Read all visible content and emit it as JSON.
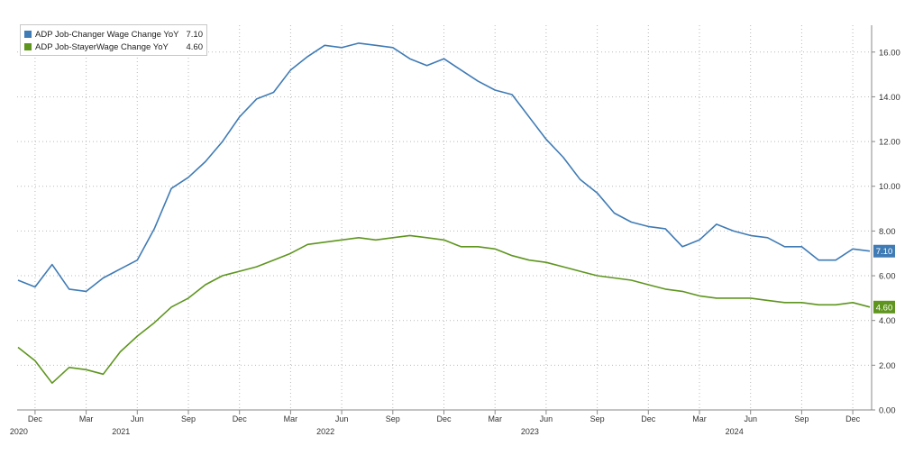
{
  "chart_data": {
    "type": "line",
    "x": [
      "2019-11",
      "2019-12",
      "2020-01",
      "2020-02",
      "2020-03",
      "2020-04",
      "2020-05",
      "2020-06",
      "2020-07",
      "2020-08",
      "2020-09",
      "2020-10",
      "2020-11",
      "2020-12",
      "2021-01",
      "2021-02",
      "2021-03",
      "2021-04",
      "2021-05",
      "2021-06",
      "2021-07",
      "2021-08",
      "2021-09",
      "2021-10",
      "2021-11",
      "2021-12",
      "2022-01",
      "2022-02",
      "2022-03",
      "2022-04",
      "2022-05",
      "2022-06",
      "2022-07",
      "2022-08",
      "2022-09",
      "2022-10",
      "2022-11",
      "2022-12",
      "2023-01",
      "2023-02",
      "2023-03",
      "2023-04",
      "2023-05",
      "2023-06",
      "2023-07",
      "2023-08",
      "2023-09",
      "2023-10",
      "2023-11",
      "2023-12",
      "2024-01"
    ],
    "series": [
      {
        "name": "ADP Job-Changer Wage Change YoY",
        "last_value_label": "7.10",
        "color": "#3f7bb5",
        "values": [
          5.8,
          5.5,
          6.5,
          5.4,
          5.3,
          5.9,
          6.3,
          6.7,
          8.1,
          9.9,
          10.4,
          11.1,
          12.0,
          13.1,
          13.9,
          14.2,
          15.2,
          15.8,
          16.3,
          16.2,
          16.4,
          16.3,
          16.2,
          15.7,
          15.4,
          15.7,
          15.2,
          14.7,
          14.3,
          14.1,
          13.1,
          12.1,
          11.3,
          10.3,
          9.7,
          8.8,
          8.4,
          8.2,
          8.1,
          7.3,
          7.6,
          8.3,
          8.0,
          7.8,
          7.7,
          7.3,
          7.3,
          6.7,
          6.7,
          7.2,
          7.1
        ]
      },
      {
        "name": "ADP Job-StayerWage Change YoY",
        "last_value_label": "4.60",
        "color": "#5e951e",
        "values": [
          2.8,
          2.2,
          1.2,
          1.9,
          1.8,
          1.6,
          2.6,
          3.3,
          3.9,
          4.6,
          5.0,
          5.6,
          6.0,
          6.2,
          6.4,
          6.7,
          7.0,
          7.4,
          7.5,
          7.6,
          7.7,
          7.6,
          7.7,
          7.8,
          7.7,
          7.6,
          7.3,
          7.3,
          7.2,
          6.9,
          6.7,
          6.6,
          6.4,
          6.2,
          6.0,
          5.9,
          5.8,
          5.6,
          5.4,
          5.3,
          5.1,
          5.0,
          5.0,
          5.0,
          4.9,
          4.8,
          4.8,
          4.7,
          4.7,
          4.8,
          4.6
        ]
      }
    ],
    "ylim": [
      0,
      17.2
    ],
    "yticks": [
      "0.00",
      "2.00",
      "4.00",
      "6.00",
      "8.00",
      "10.00",
      "12.00",
      "14.00",
      "16.00"
    ],
    "y_axis_side": "right",
    "grid": true,
    "legend_position": "top-left",
    "month_ticks": [
      {
        "index": 1,
        "label": "Dec"
      },
      {
        "index": 4,
        "label": "Mar"
      },
      {
        "index": 7,
        "label": "Jun"
      },
      {
        "index": 10,
        "label": "Sep"
      },
      {
        "index": 13,
        "label": "Dec"
      },
      {
        "index": 16,
        "label": "Mar"
      },
      {
        "index": 19,
        "label": "Jun"
      },
      {
        "index": 22,
        "label": "Sep"
      },
      {
        "index": 25,
        "label": "Dec"
      },
      {
        "index": 28,
        "label": "Mar"
      },
      {
        "index": 31,
        "label": "Jun"
      },
      {
        "index": 34,
        "label": "Sep"
      },
      {
        "index": 37,
        "label": "Dec"
      },
      {
        "index": 40,
        "label": "Mar"
      },
      {
        "index": 43,
        "label": "Jun"
      },
      {
        "index": 46,
        "label": "Sep"
      },
      {
        "index": 49,
        "label": "Dec"
      }
    ],
    "year_labels": [
      {
        "index": 1,
        "label": "2020"
      },
      {
        "index": 7,
        "label": "2021"
      },
      {
        "index": 19,
        "label": "2022"
      },
      {
        "index": 31,
        "label": "2023"
      },
      {
        "index": 43,
        "label": "2024"
      }
    ]
  }
}
